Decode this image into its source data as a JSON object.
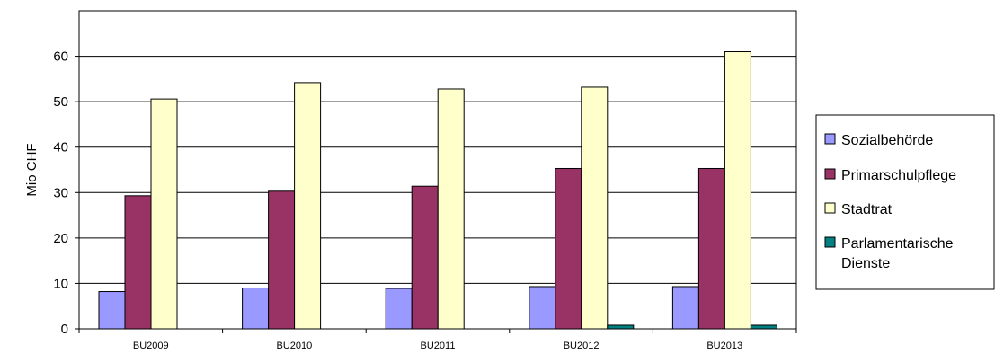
{
  "chart_data": {
    "type": "bar",
    "title": "",
    "xlabel": "",
    "ylabel": "Mio CHF",
    "ylim": [
      0,
      70
    ],
    "yticks": [
      0,
      10,
      20,
      30,
      40,
      50,
      60
    ],
    "grid": true,
    "legend_position": "right",
    "categories": [
      "BU2009",
      "BU2010",
      "BU2011",
      "BU2012",
      "BU2013"
    ],
    "series": [
      {
        "name": "Sozialbehörde",
        "color": "#9999ff",
        "values": [
          8.2,
          9.0,
          8.9,
          9.3,
          9.3
        ]
      },
      {
        "name": "Primarschulpflege",
        "color": "#993366",
        "values": [
          29.3,
          30.3,
          31.4,
          35.3,
          35.3
        ]
      },
      {
        "name": "Stadtrat",
        "color": "#ffffcc",
        "values": [
          50.6,
          54.2,
          52.8,
          53.2,
          61.0
        ]
      },
      {
        "name": "Parlamentarische Dienste",
        "legend_lines": [
          "Parlamentarische",
          "Dienste"
        ],
        "color": "#008080",
        "values": [
          0.0,
          0.0,
          0.0,
          0.8,
          0.8
        ]
      }
    ]
  }
}
